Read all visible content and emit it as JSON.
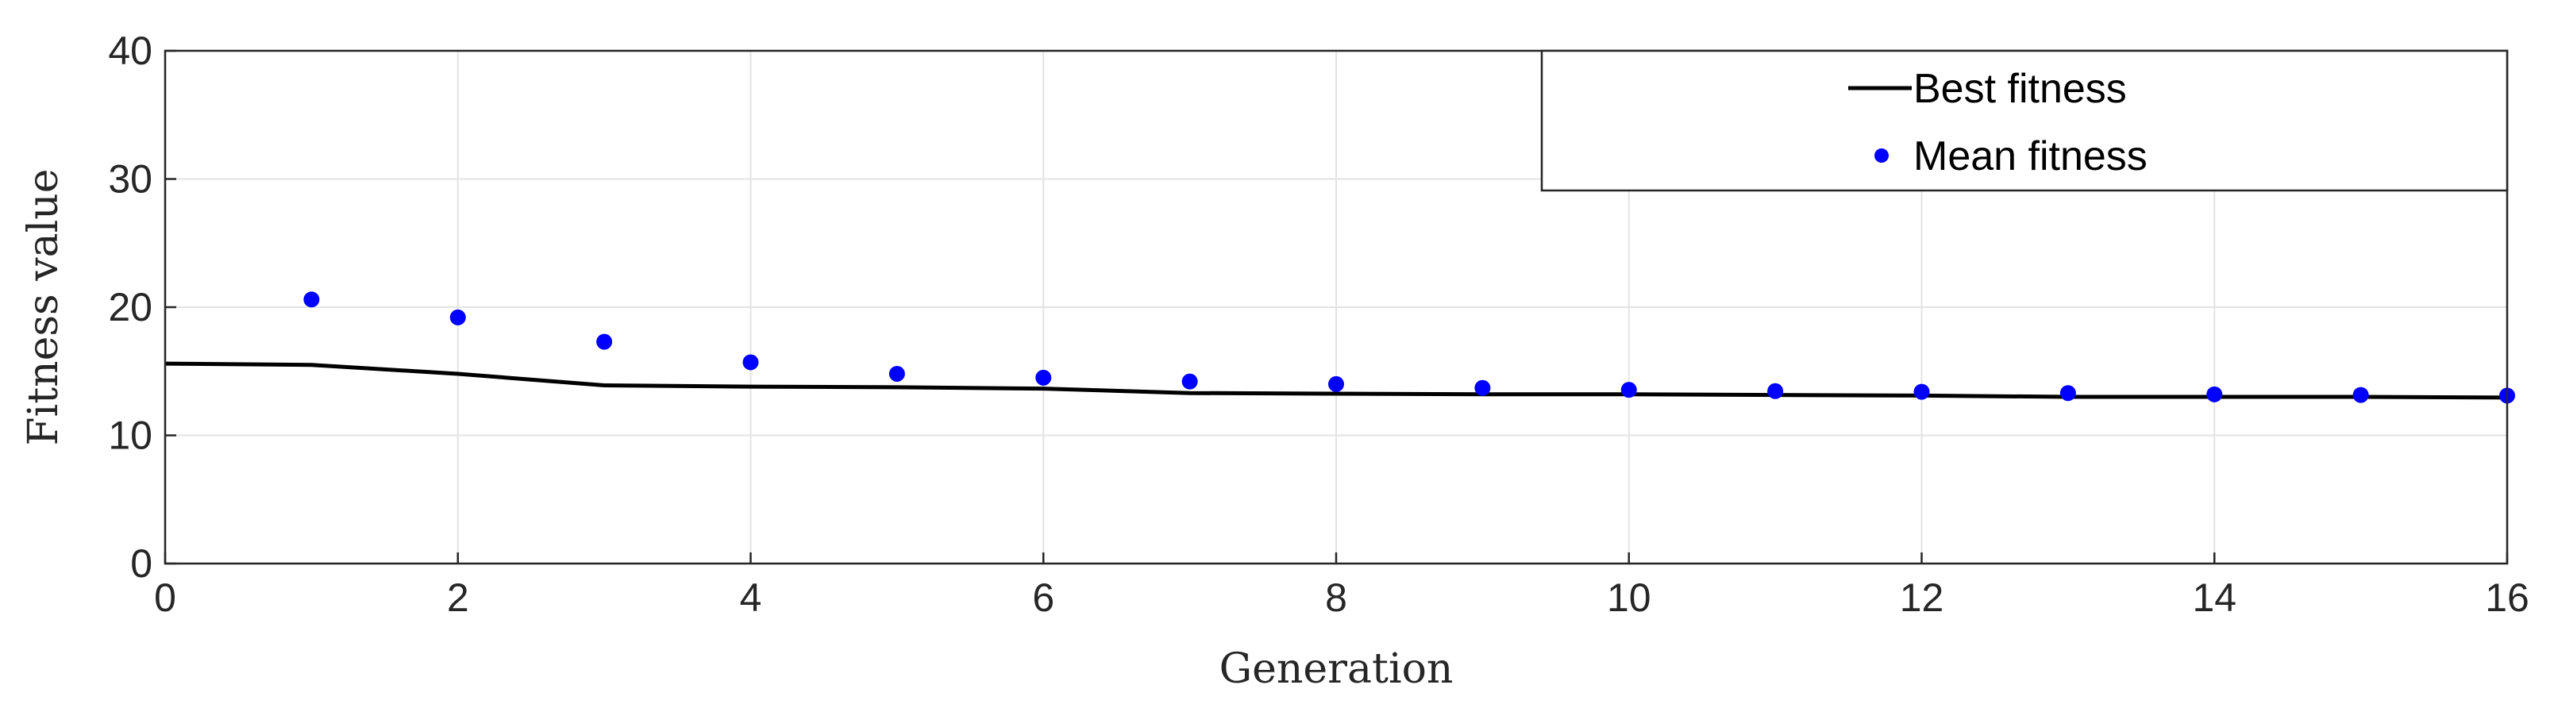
{
  "chart_data": {
    "type": "line",
    "title": "",
    "xlabel": "Generation",
    "ylabel": "Fitness value",
    "xlim": [
      0,
      16
    ],
    "ylim": [
      0,
      40
    ],
    "xticks": [
      0,
      2,
      4,
      6,
      8,
      10,
      12,
      14,
      16
    ],
    "yticks": [
      0,
      10,
      20,
      30,
      40
    ],
    "grid": true,
    "legend": "top-right",
    "series": [
      {
        "name": "Best fitness",
        "style": "line",
        "color": "#000000",
        "x": [
          0,
          1,
          2,
          3,
          4,
          5,
          6,
          7,
          8,
          9,
          10,
          11,
          12,
          13,
          14,
          15,
          16
        ],
        "y": [
          15.6,
          15.5,
          14.8,
          13.9,
          13.8,
          13.75,
          13.65,
          13.3,
          13.25,
          13.2,
          13.2,
          13.15,
          13.1,
          13.0,
          13.0,
          13.0,
          12.95
        ]
      },
      {
        "name": "Mean fitness",
        "style": "markers",
        "color": "#0000ff",
        "x": [
          1,
          2,
          3,
          4,
          5,
          6,
          7,
          8,
          9,
          10,
          11,
          12,
          13,
          14,
          15,
          16
        ],
        "y": [
          20.6,
          19.2,
          17.3,
          15.7,
          14.8,
          14.5,
          14.2,
          14.0,
          13.7,
          13.55,
          13.45,
          13.4,
          13.3,
          13.2,
          13.15,
          13.1
        ]
      }
    ]
  }
}
